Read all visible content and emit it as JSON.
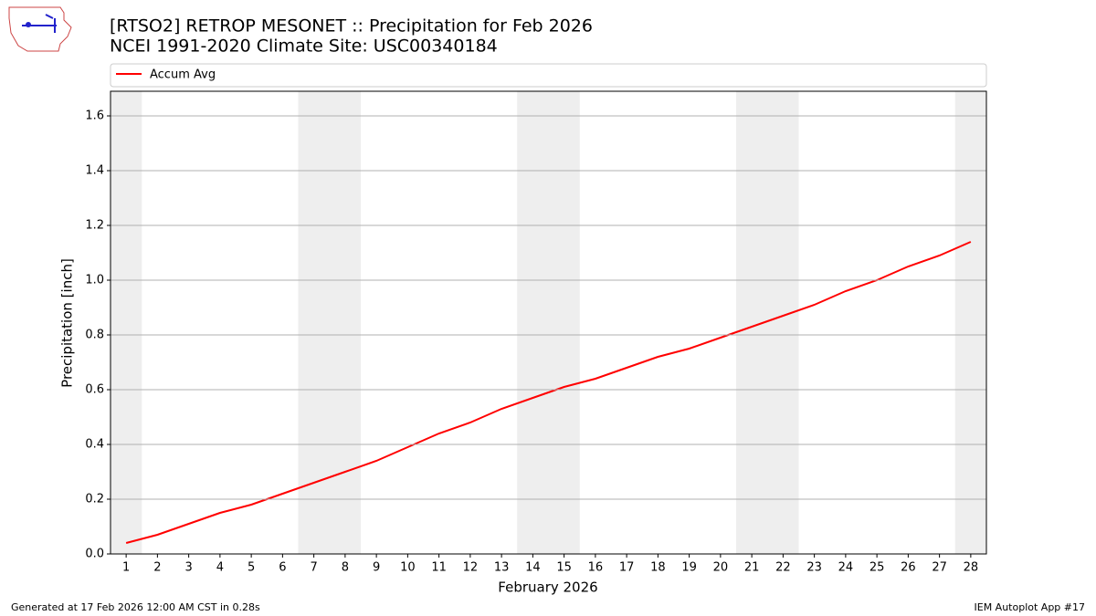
{
  "chart_data": {
    "type": "line",
    "title": "[RTSO2] RETROP MESONET :: Precipitation for Feb 2026",
    "subtitle": "NCEI 1991-2020 Climate Site: USC00340184",
    "x_label": "February 2026",
    "y_label": "Precipitation [inch]",
    "x": [
      1,
      2,
      3,
      4,
      5,
      6,
      7,
      8,
      9,
      10,
      11,
      12,
      13,
      14,
      15,
      16,
      17,
      18,
      19,
      20,
      21,
      22,
      23,
      24,
      25,
      26,
      27,
      28
    ],
    "series": [
      {
        "name": "Accum Avg",
        "color": "#ff0000",
        "values": [
          0.04,
          0.07,
          0.11,
          0.15,
          0.18,
          0.22,
          0.26,
          0.3,
          0.34,
          0.39,
          0.44,
          0.48,
          0.53,
          0.57,
          0.61,
          0.64,
          0.68,
          0.72,
          0.75,
          0.79,
          0.83,
          0.87,
          0.91,
          0.96,
          1.0,
          1.05,
          1.09,
          1.14
        ]
      }
    ],
    "weekend_spans": [
      [
        0.5,
        1.5
      ],
      [
        6.5,
        8.5
      ],
      [
        13.5,
        15.5
      ],
      [
        20.5,
        22.5
      ],
      [
        27.5,
        29.5
      ]
    ],
    "xlim": [
      0.5,
      28.5
    ],
    "ylim": [
      0,
      1.69
    ],
    "xticks": [
      1,
      2,
      3,
      4,
      5,
      6,
      7,
      8,
      9,
      10,
      11,
      12,
      13,
      14,
      15,
      16,
      17,
      18,
      19,
      20,
      21,
      22,
      23,
      24,
      25,
      26,
      27,
      28
    ],
    "yticks": [
      {
        "value": 0,
        "label": "0.0"
      },
      0.2,
      0.4,
      0.6,
      0.8,
      {
        "value": 1,
        "label": "1.0"
      },
      1.2,
      1.4,
      1.6
    ],
    "grid": true,
    "legend_position": "top",
    "footer_left": "Generated at 17 Feb 2026 12:00 AM CST in 0.28s",
    "footer_right": "IEM Autoplot App #17",
    "logo_text": "IEM"
  }
}
